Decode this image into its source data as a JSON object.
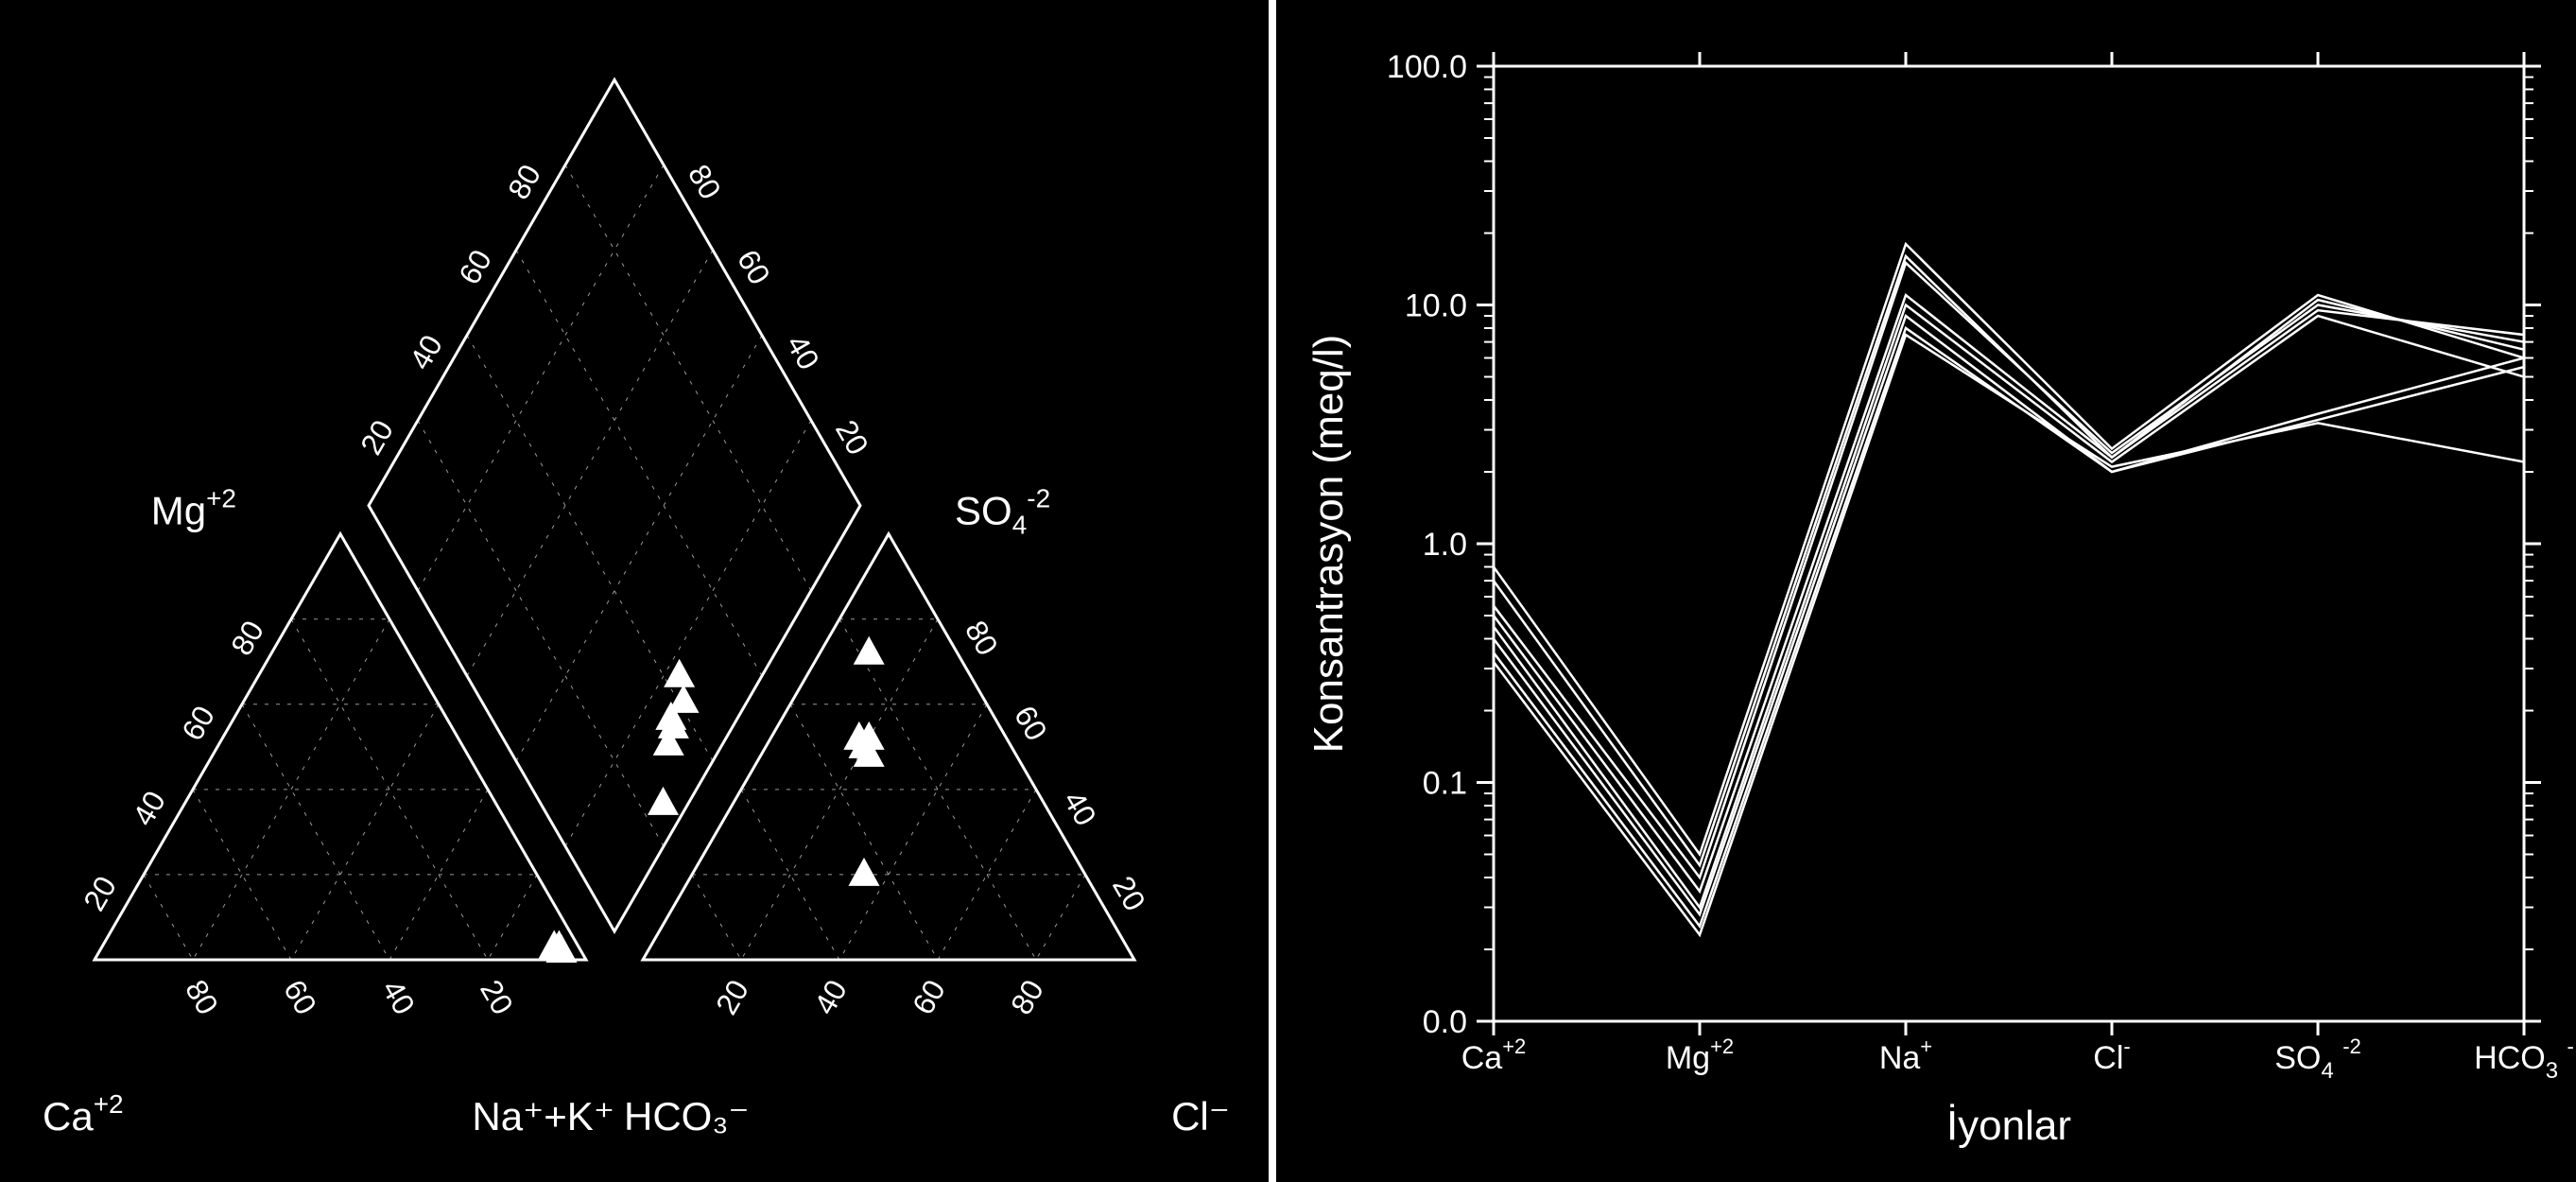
{
  "global": {
    "bg_color": "#000000",
    "fg_color": "#ffffff",
    "divider_width": 8
  },
  "piper": {
    "tick_values": [
      20,
      40,
      60,
      80
    ],
    "tick_fontsize": 32,
    "label_fontsize": 42,
    "vertex_labels": {
      "Ca": "Ca",
      "Ca_sup": "+2",
      "Mg": "Mg",
      "Mg_sup": "+2",
      "NaK": "Na⁺+K⁺",
      "HCO3": "HCO₃⁻",
      "Cl": "Cl⁻",
      "SO4": "SO₄",
      "SO4_sup": "-2"
    },
    "triangle_stroke": "#ffffff",
    "triangle_stroke_width": 3,
    "grid_stroke": "#999999",
    "grid_stroke_width": 1,
    "grid_dash": "4 8",
    "marker_type": "triangle",
    "marker_size": 30,
    "marker_fill": "#ffffff",
    "cation_points": [
      {
        "a": 4,
        "b": 3,
        "c": 93
      },
      {
        "a": 5,
        "b": 3,
        "c": 92
      },
      {
        "a": 4,
        "b": 2,
        "c": 94
      }
    ],
    "anion_points": [
      {
        "a": 18,
        "b": 72,
        "c": 10
      },
      {
        "a": 30,
        "b": 52,
        "c": 18
      },
      {
        "a": 30,
        "b": 50,
        "c": 20
      },
      {
        "a": 30,
        "b": 48,
        "c": 22
      },
      {
        "a": 28,
        "b": 52,
        "c": 20
      },
      {
        "a": 45,
        "b": 20,
        "c": 35
      }
    ],
    "diamond_points": [
      {
        "x": 83,
        "y": 15
      },
      {
        "x": 75,
        "y": 22
      },
      {
        "x": 75,
        "y": 24
      },
      {
        "x": 76,
        "y": 27
      },
      {
        "x": 73,
        "y": 25
      },
      {
        "x": 72,
        "y": 30
      }
    ]
  },
  "schoeller": {
    "type": "line",
    "ylabel": "Konsantrasyon (meq/l)",
    "xlabel": "İyonlar",
    "ylabel_fontsize": 44,
    "xlabel_fontsize": 44,
    "tick_fontsize": 34,
    "yscale": "log",
    "ylim": [
      0.01,
      100
    ],
    "ytick_labels": [
      "0.0",
      "0.1",
      "1.0",
      "10.0",
      "100.0"
    ],
    "ytick_positions": [
      0.01,
      0.1,
      1.0,
      10.0,
      100.0
    ],
    "xcategories": [
      "Ca⁺²",
      "Mg⁺²",
      "Na⁺",
      "Cl⁻",
      "SO₄⁻²",
      "HCO₃⁻"
    ],
    "xcategory_parts": [
      {
        "base": "Ca",
        "sup": "+2"
      },
      {
        "base": "Mg",
        "sup": "+2"
      },
      {
        "base": "Na",
        "sup": "+"
      },
      {
        "base": "Cl",
        "sup": "-"
      },
      {
        "base": "SO",
        "sub": "4",
        "sup": "-2"
      },
      {
        "base": "HCO",
        "sub": "3",
        "sup": "-"
      }
    ],
    "axis_color": "#ffffff",
    "axis_width": 3,
    "line_color": "#ffffff",
    "line_width": 2.5,
    "series": [
      [
        0.8,
        0.05,
        18.0,
        2.5,
        11.0,
        6.0
      ],
      [
        0.7,
        0.045,
        16.0,
        2.3,
        10.5,
        6.5
      ],
      [
        0.55,
        0.04,
        15.0,
        2.4,
        10.0,
        7.0
      ],
      [
        0.5,
        0.035,
        11.0,
        2.3,
        9.5,
        7.5
      ],
      [
        0.45,
        0.03,
        10.0,
        2.2,
        9.0,
        5.0
      ],
      [
        0.4,
        0.028,
        9.0,
        2.0,
        3.5,
        6.0
      ],
      [
        0.35,
        0.025,
        8.0,
        2.0,
        3.3,
        5.5
      ],
      [
        0.32,
        0.023,
        7.5,
        2.1,
        3.2,
        2.2
      ]
    ]
  }
}
